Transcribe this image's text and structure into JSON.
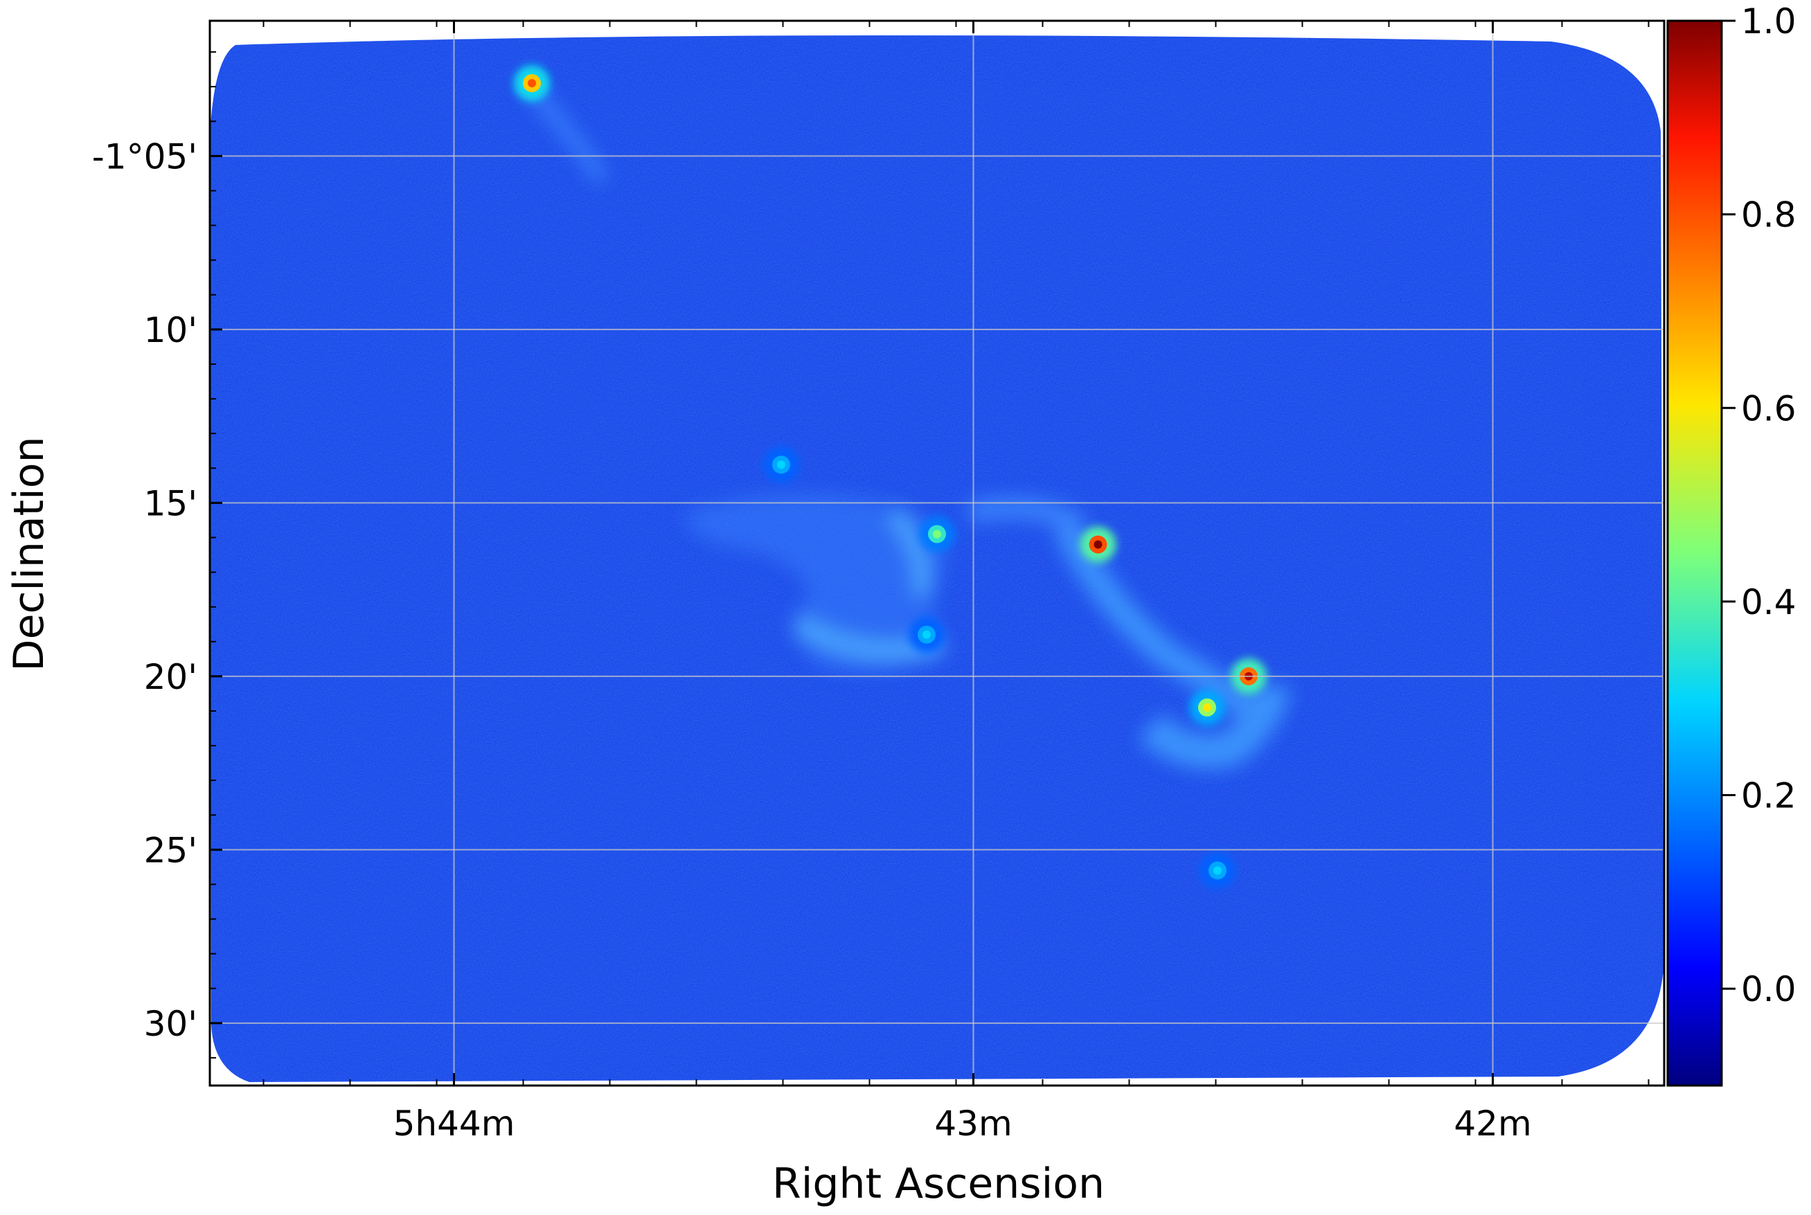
{
  "chart_data": {
    "type": "heatmap",
    "title": "",
    "xlabel": "Right Ascension",
    "ylabel": "Declination",
    "x_ticks": [
      {
        "label": "5h44m",
        "ra_min": 44.0
      },
      {
        "label": "43m",
        "ra_min": 43.0
      },
      {
        "label": "42m",
        "ra_min": 42.0
      }
    ],
    "y_ticks": [
      {
        "label": "-1°05'",
        "dec_arcmin": -5
      },
      {
        "label": "10'",
        "dec_arcmin": -10
      },
      {
        "label": "15'",
        "dec_arcmin": -15
      },
      {
        "label": "20'",
        "dec_arcmin": -20
      },
      {
        "label": "25'",
        "dec_arcmin": -25
      },
      {
        "label": "30'",
        "dec_arcmin": -30
      }
    ],
    "xlim_ra_min": [
      44.47,
      41.67
    ],
    "ylim_dec_arcmin": [
      -1.1,
      -31.8
    ],
    "grid": true,
    "colorbar": {
      "colormap": "jet",
      "range": [
        -0.1,
        1.0
      ],
      "ticks": [
        {
          "label": "0.0",
          "value": 0.0
        },
        {
          "label": "0.2",
          "value": 0.2
        },
        {
          "label": "0.4",
          "value": 0.4
        },
        {
          "label": "0.6",
          "value": 0.6
        },
        {
          "label": "0.8",
          "value": 0.8
        },
        {
          "label": "1.0",
          "value": 1.0
        }
      ]
    },
    "sources": [
      {
        "ra_min": 43.85,
        "dec_arcmin": -2.9,
        "peak": 0.8
      },
      {
        "ra_min": 43.37,
        "dec_arcmin": -13.9,
        "peak": 0.3
      },
      {
        "ra_min": 43.07,
        "dec_arcmin": -15.9,
        "peak": 0.45
      },
      {
        "ra_min": 42.76,
        "dec_arcmin": -16.2,
        "peak": 1.0
      },
      {
        "ra_min": 42.47,
        "dec_arcmin": -20.0,
        "peak": 0.95
      },
      {
        "ra_min": 42.55,
        "dec_arcmin": -20.9,
        "peak": 0.6
      },
      {
        "ra_min": 43.09,
        "dec_arcmin": -18.8,
        "peak": 0.3
      },
      {
        "ra_min": 42.53,
        "dec_arcmin": -25.6,
        "peak": 0.3
      }
    ]
  }
}
